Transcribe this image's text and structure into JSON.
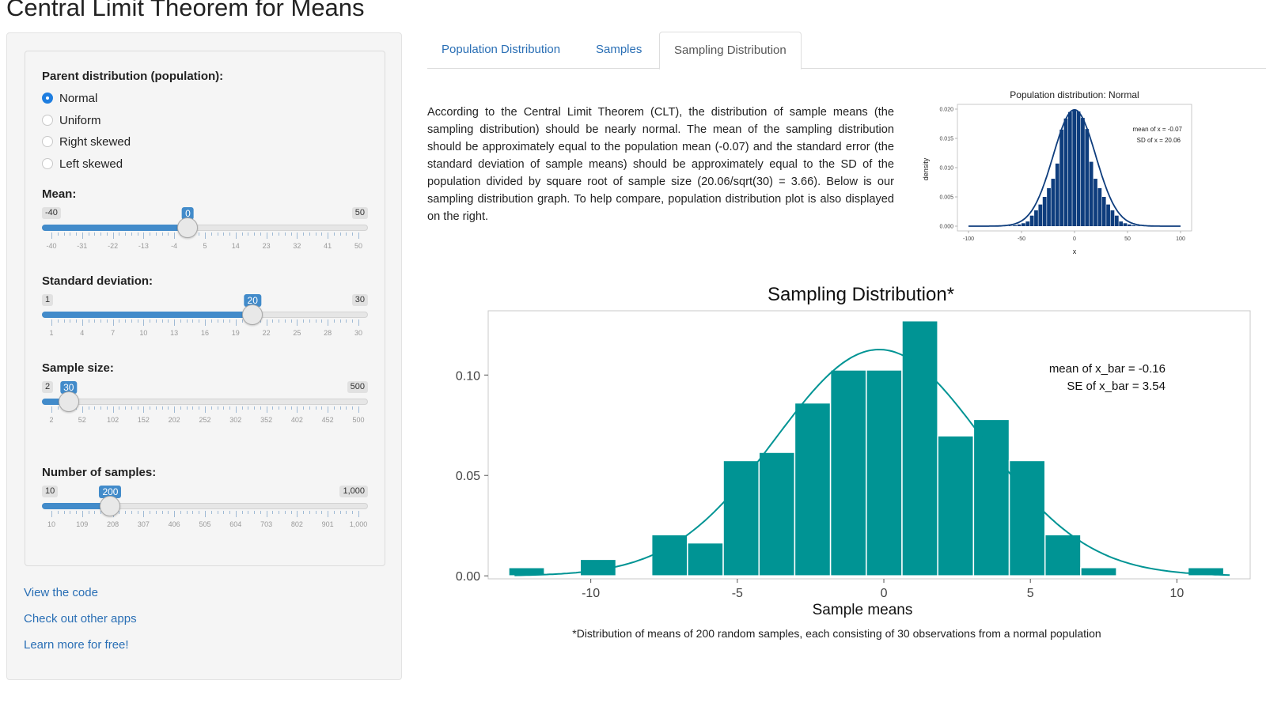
{
  "app": {
    "title": "Central Limit Theorem for Means"
  },
  "sidebar": {
    "parent_label": "Parent distribution (population):",
    "radios": [
      {
        "label": "Normal",
        "selected": true
      },
      {
        "label": "Uniform",
        "selected": false
      },
      {
        "label": "Right skewed",
        "selected": false
      },
      {
        "label": "Left skewed",
        "selected": false
      }
    ],
    "sliders": [
      {
        "label": "Mean:",
        "min_label": "-40",
        "max_label": "50",
        "value_label": "0",
        "min": -40,
        "max": 50,
        "value": 0,
        "tick_labels": [
          "-40",
          "-31",
          "-22",
          "-13",
          "-4",
          "5",
          "14",
          "23",
          "32",
          "41",
          "50"
        ]
      },
      {
        "label": "Standard deviation:",
        "min_label": "1",
        "max_label": "30",
        "value_label": "20",
        "min": 1,
        "max": 30,
        "value": 20,
        "tick_labels": [
          "1",
          "4",
          "7",
          "10",
          "13",
          "16",
          "19",
          "22",
          "25",
          "28",
          "30"
        ]
      },
      {
        "label": "Sample size:",
        "min_label": "2",
        "max_label": "500",
        "value_label": "30",
        "min": 2,
        "max": 500,
        "value": 30,
        "tick_labels": [
          "2",
          "52",
          "102",
          "152",
          "202",
          "252",
          "302",
          "352",
          "402",
          "452",
          "500"
        ]
      },
      {
        "label": "Number of samples:",
        "min_label": "10",
        "max_label": "1,000",
        "value_label": "200",
        "min": 10,
        "max": 1000,
        "value": 200,
        "tick_labels": [
          "10",
          "109",
          "208",
          "307",
          "406",
          "505",
          "604",
          "703",
          "802",
          "901",
          "1,000"
        ]
      }
    ],
    "links": [
      "View the code",
      "Check out other apps",
      "Learn more for free!"
    ]
  },
  "tabs": [
    {
      "label": "Population Distribution",
      "active": false
    },
    {
      "label": "Samples",
      "active": false
    },
    {
      "label": "Sampling Distribution",
      "active": true
    }
  ],
  "main": {
    "intro": "According to the Central Limit Theorem (CLT), the distribution of sample means (the sampling distribution) should be nearly normal. The mean of the sampling distribution should be approximately equal to the population mean (-0.07) and the standard error (the standard deviation of sample means) should be approximately equal to the SD of the population divided by square root of sample size (20.06/sqrt(30) = 3.66). Below is our sampling distribution graph. To help compare, population distribution plot is also displayed on the right.",
    "footnote": "*Distribution of means of 200 random samples, each consisting of 30 observations from a normal population"
  },
  "colors": {
    "accent": "#428bca",
    "link": "#2a6fb5",
    "teal": "#009494",
    "navy": "#0e3d7d"
  },
  "chart_data": [
    {
      "type": "bar",
      "title": "Population distribution: Normal",
      "xlabel": "x",
      "ylabel": "density",
      "xlim": [
        -100,
        100
      ],
      "ylim": [
        0,
        0.02
      ],
      "x_ticks": [
        "-100",
        "-50",
        "0",
        "50",
        "100"
      ],
      "y_ticks": [
        "0.000",
        "0.005",
        "0.010",
        "0.015",
        "0.020"
      ],
      "annotations": [
        "mean of x = -0.07",
        "SD of x = 20.06"
      ],
      "mean": -0.07,
      "sd": 20.06,
      "bins": {
        "x": [
          -60,
          -56,
          -52,
          -48,
          -44,
          -40,
          -36,
          -32,
          -28,
          -24,
          -20,
          -16,
          -12,
          -8,
          -4,
          0,
          4,
          8,
          12,
          16,
          20,
          24,
          28,
          32,
          36,
          40,
          44,
          48,
          52,
          56,
          60
        ],
        "values": [
          6e-05,
          0.00015,
          0.0003,
          0.0005,
          0.0008,
          0.0018,
          0.0027,
          0.0037,
          0.005,
          0.0065,
          0.0081,
          0.0107,
          0.0165,
          0.0184,
          0.0195,
          0.0199,
          0.0196,
          0.0185,
          0.0166,
          0.011,
          0.0081,
          0.0065,
          0.005,
          0.0037,
          0.0027,
          0.0018,
          0.0008,
          0.0005,
          0.0003,
          0.00015,
          6e-05
        ]
      }
    },
    {
      "type": "bar",
      "title": "Sampling Distribution*",
      "xlabel": "Sample means",
      "ylabel": "",
      "xlim": [
        -13.5,
        12.5
      ],
      "ylim": [
        -0.0015,
        0.132
      ],
      "x_ticks": [
        "-10",
        "-5",
        "0",
        "5",
        "10"
      ],
      "y_ticks": [
        "0.00",
        "0.05",
        "0.10"
      ],
      "annotations": [
        "mean of x_bar = -0.16",
        "SE of x_bar = 3.54"
      ],
      "mean": -0.16,
      "se": 3.54,
      "bin_width": 1.22,
      "bin_starts": [
        -12.8,
        -10.36,
        -7.92,
        -6.7,
        -5.48,
        -4.26,
        -3.04,
        -1.82,
        -0.6,
        0.62,
        1.84,
        3.06,
        4.28,
        5.5,
        6.72,
        10.38
      ],
      "values": [
        0.0041,
        0.0082,
        0.0205,
        0.0164,
        0.0574,
        0.0615,
        0.0861,
        0.1025,
        0.1025,
        0.127,
        0.0697,
        0.0779,
        0.0574,
        0.0205,
        0.0041,
        0.0041
      ]
    }
  ]
}
